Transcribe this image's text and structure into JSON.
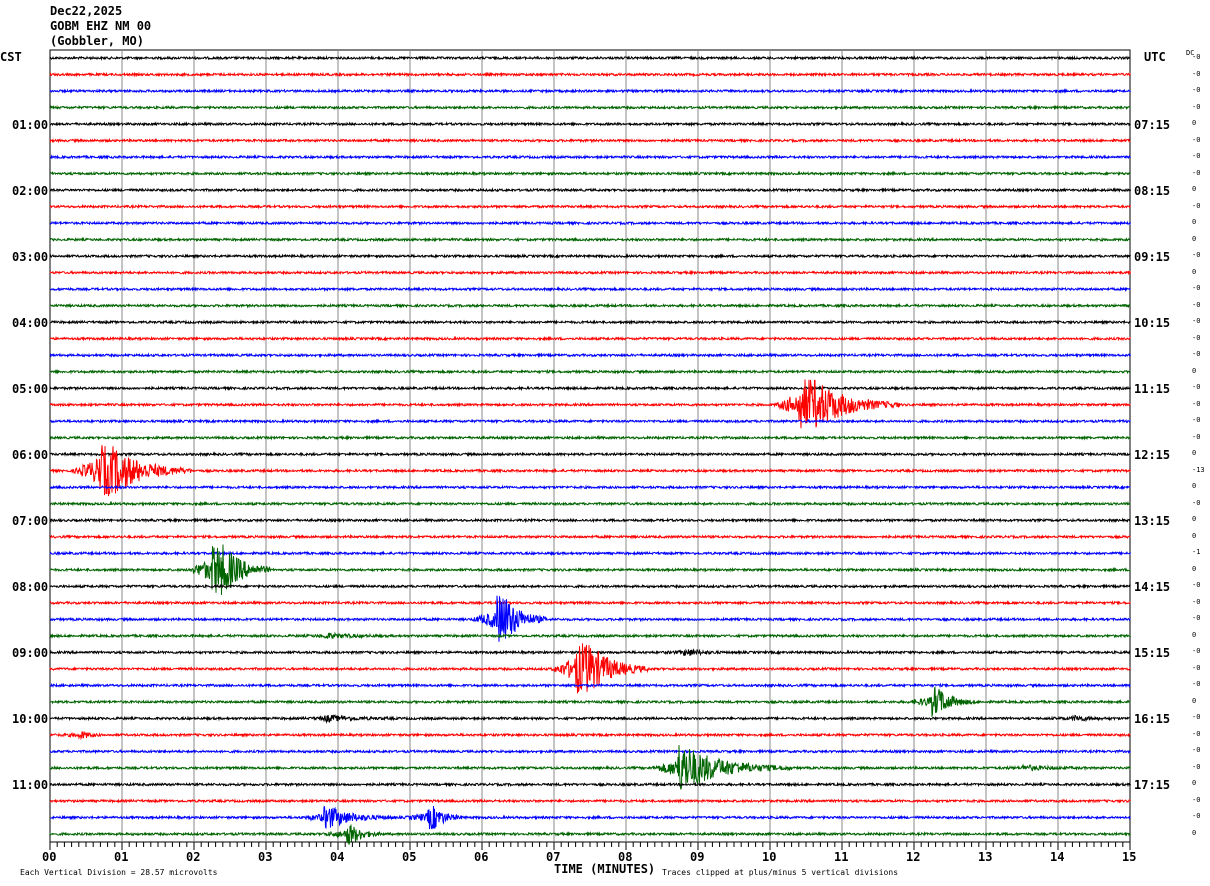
{
  "header": {
    "date": "Dec22,2025",
    "station": "GOBM EHZ NM 00",
    "location": "(Gobbler, MO)"
  },
  "left_tz": "CST",
  "right_tz": "UTC",
  "dc_label": "DC",
  "chart_data": {
    "type": "line",
    "title": "GOBM EHZ NM 00 helicorder",
    "xlabel": "TIME (MINUTES)",
    "xlim": [
      0,
      15
    ],
    "x_ticks": [
      "00",
      "01",
      "02",
      "03",
      "04",
      "05",
      "06",
      "07",
      "08",
      "09",
      "10",
      "11",
      "12",
      "13",
      "14",
      "15"
    ],
    "left_labels": [
      "01:00",
      "02:00",
      "03:00",
      "04:00",
      "05:00",
      "06:00",
      "07:00",
      "08:00",
      "09:00",
      "10:00",
      "11:00"
    ],
    "right_labels": [
      "07:15",
      "08:15",
      "09:15",
      "10:15",
      "11:15",
      "12:15",
      "13:15",
      "14:15",
      "15:15",
      "16:15",
      "17:15"
    ],
    "trace_count": 48,
    "trace_colors": [
      "#000000",
      "#ff0000",
      "#0000ff",
      "#006400"
    ],
    "dc_offsets": [
      "-0",
      "-0",
      "-0",
      "-0",
      "0",
      "-0",
      "-0",
      "-0",
      "0",
      "-0",
      "0",
      "0",
      "-0",
      "0",
      "-0",
      "-0",
      "-0",
      "-0",
      "-0",
      "0",
      "-0",
      "-0",
      "-0",
      "-0",
      "0",
      "-13",
      "0",
      "-0",
      "0",
      "0",
      "-1",
      "0",
      "-0",
      "-0",
      "-0",
      "0",
      "-0",
      "-0",
      "-0",
      "0",
      "-0",
      "-0",
      "-0",
      "-0",
      "0",
      "-0",
      "-0",
      "0"
    ],
    "events": [
      {
        "trace": 21,
        "minute": 10.4,
        "amplitude": 5,
        "duration_min": 1.4
      },
      {
        "trace": 25,
        "minute": 0.65,
        "amplitude": 5,
        "duration_min": 1.3
      },
      {
        "trace": 31,
        "minute": 2.25,
        "amplitude": 5,
        "duration_min": 0.8
      },
      {
        "trace": 34,
        "minute": 6.2,
        "amplitude": 4,
        "duration_min": 0.7
      },
      {
        "trace": 37,
        "minute": 7.3,
        "amplitude": 5,
        "duration_min": 1.0
      },
      {
        "trace": 39,
        "minute": 12.25,
        "amplitude": 2,
        "duration_min": 0.6
      },
      {
        "trace": 43,
        "minute": 8.7,
        "amplitude": 3.5,
        "duration_min": 1.6
      },
      {
        "trace": 46,
        "minute": 3.8,
        "amplitude": 1.5,
        "duration_min": 1.0
      },
      {
        "trace": 46,
        "minute": 5.25,
        "amplitude": 1.6,
        "duration_min": 0.5
      },
      {
        "trace": 47,
        "minute": 4.1,
        "amplitude": 1.4,
        "duration_min": 0.5
      },
      {
        "trace": 40,
        "minute": 3.8,
        "amplitude": 0.4,
        "duration_min": 1.0
      },
      {
        "trace": 36,
        "minute": 8.8,
        "amplitude": 0.4,
        "duration_min": 0.6
      },
      {
        "trace": 41,
        "minute": 0.4,
        "amplitude": 0.4,
        "duration_min": 0.3
      },
      {
        "trace": 35,
        "minute": 3.8,
        "amplitude": 0.3,
        "duration_min": 1.0
      },
      {
        "trace": 40,
        "minute": 14.2,
        "amplitude": 0.3,
        "duration_min": 0.6
      },
      {
        "trace": 43,
        "minute": 13.5,
        "amplitude": 0.3,
        "duration_min": 1.0
      }
    ],
    "scale_note": "Each Vertical Division =   28.57 microvolts",
    "clip_note": "Traces clipped at plus/minus 5 vertical divisions"
  }
}
